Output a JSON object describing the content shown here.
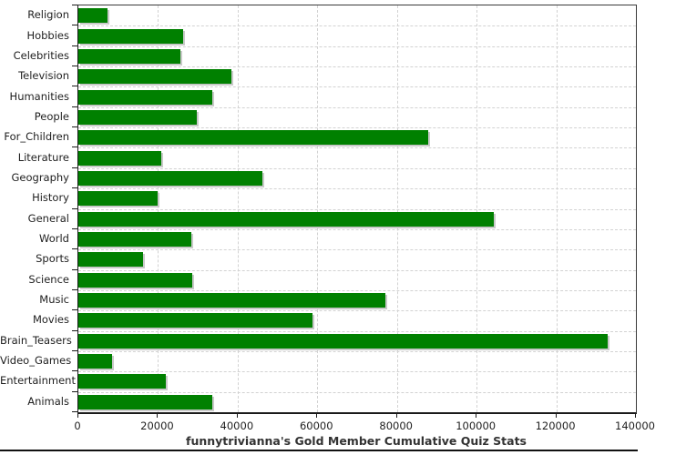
{
  "title": "funnytrivianna's Gold Member Cumulative Quiz Stats",
  "chart_data": {
    "type": "bar",
    "orientation": "horizontal",
    "title": "funnytrivianna's Gold Member Cumulative Quiz Stats",
    "categories": [
      "Religion",
      "Hobbies",
      "Celebrities",
      "Television",
      "Humanities",
      "People",
      "For_Children",
      "Literature",
      "Geography",
      "History",
      "General",
      "World",
      "Sports",
      "Science",
      "Music",
      "Movies",
      "Brain_Teasers",
      "Video_Games",
      "Entertainment",
      "Animals"
    ],
    "values": [
      7400,
      26300,
      25700,
      38500,
      33600,
      29700,
      87900,
      20800,
      46200,
      20000,
      104400,
      28400,
      16200,
      28600,
      77200,
      58900,
      132800,
      8500,
      22000,
      33600
    ],
    "xlabel": "",
    "ylabel": "",
    "xlim": [
      0,
      140000
    ],
    "x_ticks": [
      0,
      20000,
      40000,
      60000,
      80000,
      100000,
      120000,
      140000
    ],
    "x_tick_labels": [
      "0",
      "20000",
      "40000",
      "60000",
      "80000",
      "100000",
      "120000",
      "140000"
    ],
    "grid": "dashed, vertical at each x tick and horizontal at each category boundary",
    "legend": "none",
    "bar_color": "#008000",
    "bar_shadow_color": "#c9c9c9",
    "grid_color": "#d2d2d2",
    "axis_color": "#1a1a1a",
    "text_color": "#1f1f1f",
    "title_color": "#333333"
  }
}
